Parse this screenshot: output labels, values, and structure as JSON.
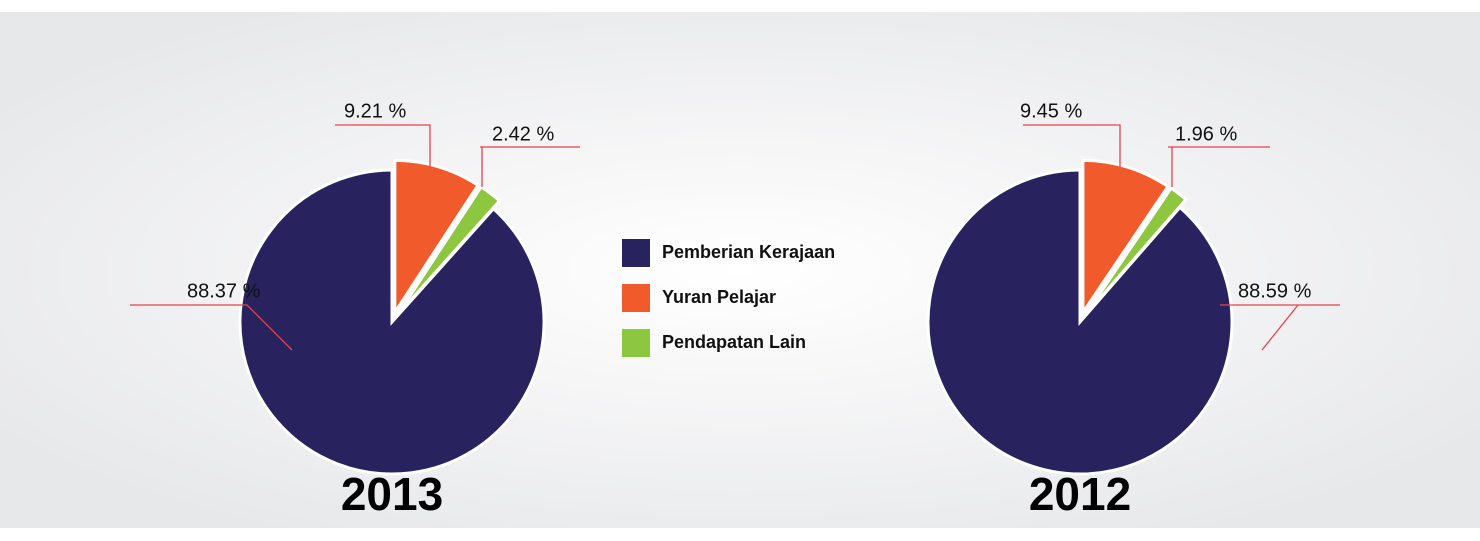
{
  "chart_data": [
    {
      "type": "pie",
      "title": "2013",
      "categories": [
        "Pemberian Kerajaan",
        "Yuran Pelajar",
        "Pendapatan Lain"
      ],
      "values": [
        88.37,
        9.21,
        2.42
      ],
      "value_labels": [
        "88.37 %",
        "9.21 %",
        "2.42 %"
      ],
      "colors": [
        "#28235e",
        "#f15a2b",
        "#8dc63f"
      ]
    },
    {
      "type": "pie",
      "title": "2012",
      "categories": [
        "Pemberian Kerajaan",
        "Yuran Pelajar",
        "Pendapatan Lain"
      ],
      "values": [
        88.59,
        9.45,
        1.96
      ],
      "value_labels": [
        "88.59 %",
        "9.45 %",
        "1.96 %"
      ],
      "colors": [
        "#28235e",
        "#f15a2b",
        "#8dc63f"
      ]
    }
  ]
}
